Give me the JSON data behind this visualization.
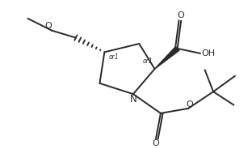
{
  "background_color": "#ffffff",
  "line_color": "#2a2a2a",
  "line_width": 1.4,
  "font_size": 7.5,
  "figsize": [
    3.12,
    1.84
  ],
  "dpi": 100,
  "xlim": [
    0,
    10
  ],
  "ylim": [
    0,
    6.1
  ]
}
